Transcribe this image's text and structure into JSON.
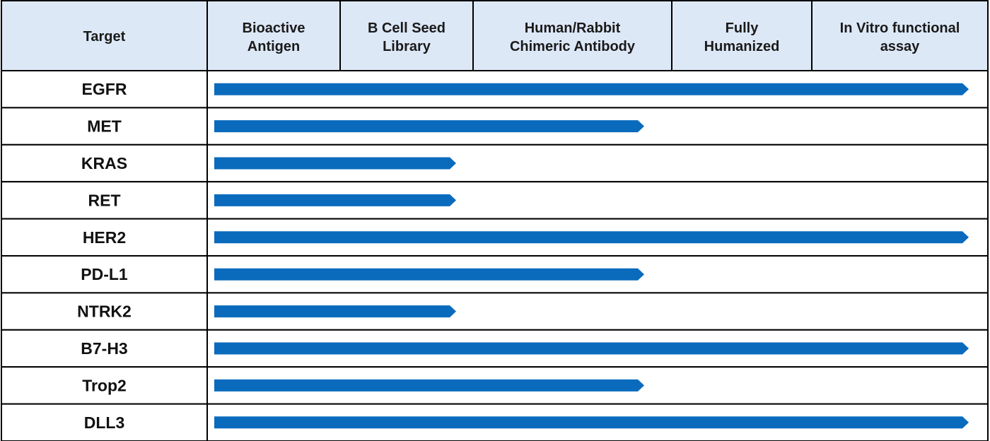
{
  "chart_data": {
    "type": "bar",
    "header": {
      "target_label": "Target",
      "stages": [
        [
          "Bioactive",
          "Antigen"
        ],
        [
          "B Cell Seed",
          "Library"
        ],
        [
          "Human/Rabbit",
          "Chimeric Antibody"
        ],
        [
          "Fully",
          "Humanized"
        ],
        [
          "In Vitro functional",
          "assay"
        ]
      ]
    },
    "rows": [
      {
        "target": "EGFR",
        "stages_completed": 5
      },
      {
        "target": "MET",
        "stages_completed": 3
      },
      {
        "target": "KRAS",
        "stages_completed": 2
      },
      {
        "target": "RET",
        "stages_completed": 2
      },
      {
        "target": "HER2",
        "stages_completed": 5
      },
      {
        "target": "PD-L1",
        "stages_completed": 3
      },
      {
        "target": "NTRK2",
        "stages_completed": 2
      },
      {
        "target": "B7-H3",
        "stages_completed": 5
      },
      {
        "target": "Trop2",
        "stages_completed": 3
      },
      {
        "target": "DLL3",
        "stages_completed": 5
      }
    ],
    "bar_color": "#0a6bbd",
    "header_fill": "#dde8f7"
  }
}
